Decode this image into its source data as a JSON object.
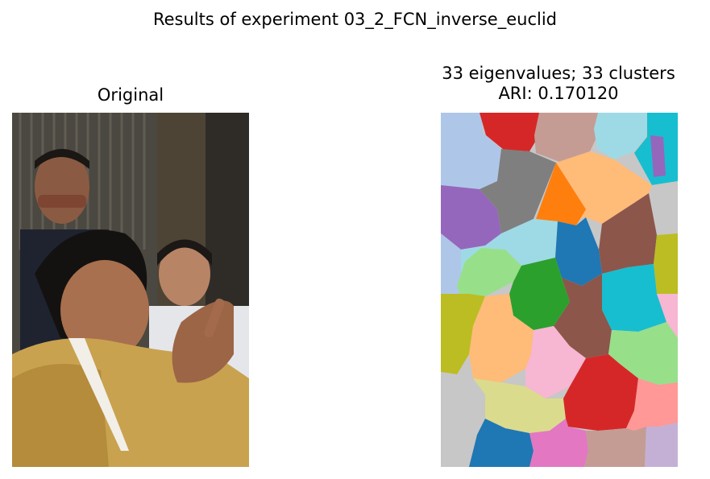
{
  "figure": {
    "suptitle": "Results of experiment 03_2_FCN_inverse_euclid",
    "left_panel": {
      "title": "Original"
    },
    "right_panel": {
      "title_line1": "33 eigenvalues; 33 clusters",
      "title_line2": "ARI: 0.170120",
      "eigenvalues": 33,
      "clusters": 33,
      "ari": 0.17012
    }
  }
}
